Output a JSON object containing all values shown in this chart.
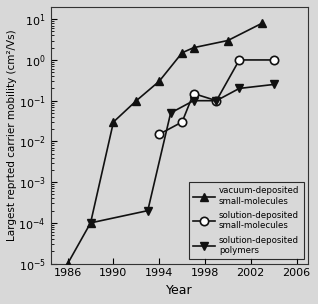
{
  "vacuum_sm_x": [
    1986,
    1988,
    1990,
    1992,
    1994,
    1996,
    1997,
    2000,
    2003
  ],
  "vacuum_sm_y": [
    1e-05,
    0.0001,
    0.03,
    0.1,
    0.3,
    1.5,
    2.0,
    3.0,
    8.0
  ],
  "solution_sm_x": [
    1994,
    1996,
    1997,
    1999,
    2001,
    2004
  ],
  "solution_sm_y": [
    0.015,
    0.03,
    0.15,
    0.1,
    1.0,
    1.0
  ],
  "solution_poly_x": [
    1988,
    1993,
    1995,
    1997,
    1999,
    2001,
    2004
  ],
  "solution_poly_y": [
    0.0001,
    0.0002,
    0.05,
    0.1,
    0.1,
    0.2,
    0.25
  ],
  "ylabel": "Largest reprted carrier mobility (cm²/Vs)",
  "xlabel": "Year",
  "xlim": [
    1984.5,
    2007
  ],
  "ylim": [
    1e-05,
    20.0
  ],
  "yticks": [
    1e-05,
    0.0001,
    0.001,
    0.01,
    0.1,
    1.0,
    10.0
  ],
  "xticks": [
    1986,
    1990,
    1994,
    1998,
    2002,
    2006
  ],
  "legend_labels": [
    "vacuum-deposited\nsmall-molecules",
    "solution-deposited\nsmall-molecules",
    "solution-deposited\npolymers"
  ],
  "bg_color": "#d8d8d8",
  "line_color": "#111111"
}
